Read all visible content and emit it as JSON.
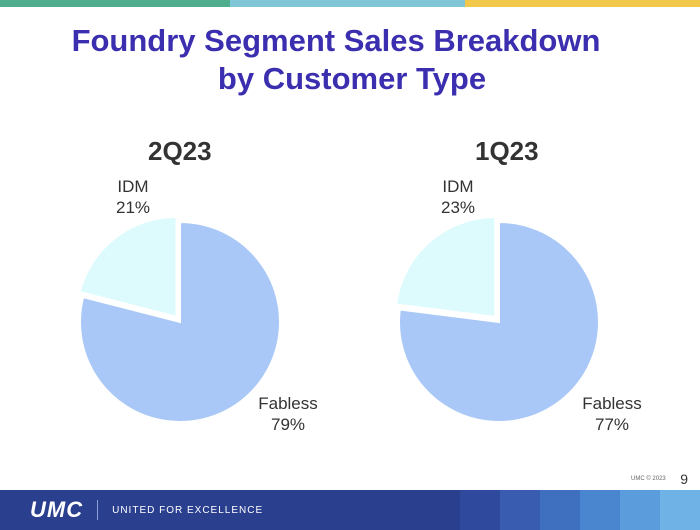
{
  "slide": {
    "title_line1": "Foundry Segment Sales Breakdown",
    "title_line2": "by Customer Type",
    "copyright": "UMC © 2023",
    "page_number": "9"
  },
  "footer": {
    "logo": "UMC",
    "tagline": "UNITED FOR EXCELLENCE"
  },
  "colors": {
    "title": "#3b2fb0",
    "fabless": "#a9c8f7",
    "idm": "#ddfbfd",
    "footer": "#2b3f8f"
  },
  "chart_data": [
    {
      "type": "pie",
      "title": "2Q23",
      "slices": [
        {
          "label": "IDM",
          "value": 21,
          "value_label": "21%"
        },
        {
          "label": "Fabless",
          "value": 79,
          "value_label": "79%"
        }
      ]
    },
    {
      "type": "pie",
      "title": "1Q23",
      "slices": [
        {
          "label": "IDM",
          "value": 23,
          "value_label": "23%"
        },
        {
          "label": "Fabless",
          "value": 77,
          "value_label": "77%"
        }
      ]
    }
  ]
}
